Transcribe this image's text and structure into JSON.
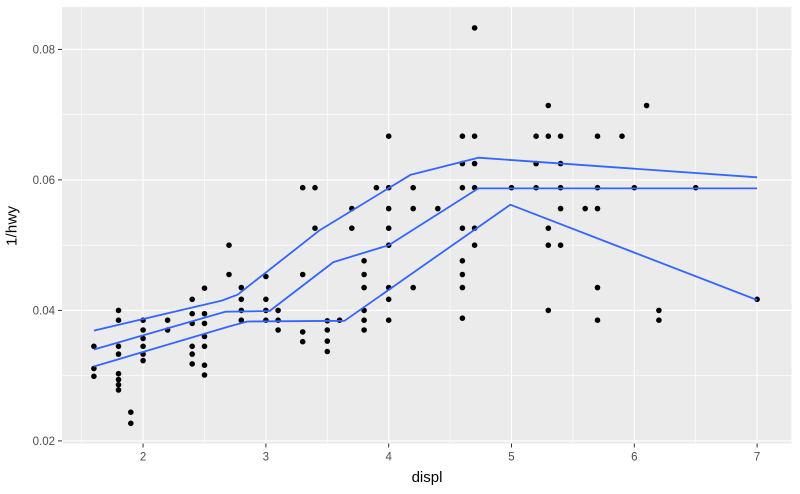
{
  "chart_data": {
    "type": "scatter",
    "title": "",
    "xlabel": "displ",
    "ylabel": "1/hwy",
    "x_ticks": [
      2,
      3,
      4,
      5,
      6,
      7
    ],
    "x_tick_labels": [
      "2",
      "3",
      "4",
      "5",
      "6",
      "7"
    ],
    "y_ticks": [
      0.02,
      0.04,
      0.06,
      0.08
    ],
    "y_tick_labels": [
      "0.02",
      "0.04",
      "0.06",
      "0.08"
    ],
    "x_minor_ticks": [
      1.5,
      2.5,
      3.5,
      4.5,
      5.5,
      6.5
    ],
    "y_minor_ticks": [
      0.03,
      0.05,
      0.07
    ],
    "xlim": [
      1.34,
      7.28
    ],
    "ylim": [
      0.0196,
      0.0865
    ],
    "grid": "on",
    "legend": "none",
    "panel_bg_color": "#EBEBEB",
    "grid_color": "#FFFFFF",
    "point_color": "#000000",
    "line_color": "#3366FF",
    "tick_label_color": "#4D4D4D",
    "tick_mark_color": "#333333",
    "axis_title_color": "#000000",
    "points": [
      [
        1.6,
        0.0345
      ],
      [
        1.6,
        0.0311
      ],
      [
        1.6,
        0.0299
      ],
      [
        1.8,
        0.04
      ],
      [
        1.8,
        0.0385
      ],
      [
        1.8,
        0.0345
      ],
      [
        1.8,
        0.0333
      ],
      [
        1.8,
        0.0303
      ],
      [
        1.8,
        0.0294
      ],
      [
        1.8,
        0.0286
      ],
      [
        1.8,
        0.0278
      ],
      [
        1.9,
        0.0244
      ],
      [
        1.9,
        0.0227
      ],
      [
        2.0,
        0.0385
      ],
      [
        2.0,
        0.037
      ],
      [
        2.0,
        0.0357
      ],
      [
        2.0,
        0.0345
      ],
      [
        2.0,
        0.0333
      ],
      [
        2.0,
        0.0323
      ],
      [
        2.2,
        0.0385
      ],
      [
        2.2,
        0.037
      ],
      [
        2.4,
        0.0417
      ],
      [
        2.4,
        0.0395
      ],
      [
        2.4,
        0.038
      ],
      [
        2.4,
        0.0345
      ],
      [
        2.4,
        0.0333
      ],
      [
        2.4,
        0.0318
      ],
      [
        2.5,
        0.0434
      ],
      [
        2.5,
        0.0395
      ],
      [
        2.5,
        0.038
      ],
      [
        2.5,
        0.036
      ],
      [
        2.5,
        0.0345
      ],
      [
        2.5,
        0.0316
      ],
      [
        2.5,
        0.0301
      ],
      [
        2.7,
        0.05
      ],
      [
        2.7,
        0.0455
      ],
      [
        2.8,
        0.0435
      ],
      [
        2.8,
        0.0417
      ],
      [
        2.8,
        0.04
      ],
      [
        2.8,
        0.0385
      ],
      [
        3.0,
        0.0452
      ],
      [
        3.0,
        0.0417
      ],
      [
        3.0,
        0.04
      ],
      [
        3.0,
        0.0385
      ],
      [
        3.1,
        0.04
      ],
      [
        3.1,
        0.0385
      ],
      [
        3.1,
        0.037
      ],
      [
        3.3,
        0.0588
      ],
      [
        3.3,
        0.0455
      ],
      [
        3.3,
        0.0367
      ],
      [
        3.3,
        0.0352
      ],
      [
        3.4,
        0.0588
      ],
      [
        3.4,
        0.0526
      ],
      [
        3.5,
        0.0384
      ],
      [
        3.5,
        0.037
      ],
      [
        3.5,
        0.0353
      ],
      [
        3.5,
        0.0337
      ],
      [
        3.6,
        0.0385
      ],
      [
        3.7,
        0.0556
      ],
      [
        3.7,
        0.0526
      ],
      [
        3.8,
        0.0476
      ],
      [
        3.8,
        0.0455
      ],
      [
        3.8,
        0.0435
      ],
      [
        3.8,
        0.04
      ],
      [
        3.8,
        0.0385
      ],
      [
        3.8,
        0.037
      ],
      [
        3.9,
        0.0588
      ],
      [
        4.0,
        0.0667
      ],
      [
        4.0,
        0.0588
      ],
      [
        4.0,
        0.0556
      ],
      [
        4.0,
        0.0526
      ],
      [
        4.0,
        0.05
      ],
      [
        4.0,
        0.0435
      ],
      [
        4.0,
        0.0417
      ],
      [
        4.0,
        0.0385
      ],
      [
        4.2,
        0.0588
      ],
      [
        4.2,
        0.0556
      ],
      [
        4.2,
        0.0435
      ],
      [
        4.4,
        0.0556
      ],
      [
        4.6,
        0.0667
      ],
      [
        4.6,
        0.0625
      ],
      [
        4.6,
        0.0588
      ],
      [
        4.6,
        0.0526
      ],
      [
        4.6,
        0.0476
      ],
      [
        4.6,
        0.0455
      ],
      [
        4.6,
        0.0435
      ],
      [
        4.6,
        0.0388
      ],
      [
        4.7,
        0.0833
      ],
      [
        4.7,
        0.0667
      ],
      [
        4.7,
        0.0625
      ],
      [
        4.7,
        0.0588
      ],
      [
        4.7,
        0.0526
      ],
      [
        4.7,
        0.05
      ],
      [
        5.0,
        0.0588
      ],
      [
        5.2,
        0.0667
      ],
      [
        5.2,
        0.0625
      ],
      [
        5.2,
        0.0588
      ],
      [
        5.3,
        0.0714
      ],
      [
        5.3,
        0.0667
      ],
      [
        5.3,
        0.0526
      ],
      [
        5.3,
        0.05
      ],
      [
        5.3,
        0.04
      ],
      [
        5.4,
        0.0667
      ],
      [
        5.4,
        0.0625
      ],
      [
        5.4,
        0.0588
      ],
      [
        5.4,
        0.0556
      ],
      [
        5.4,
        0.05
      ],
      [
        5.6,
        0.0556
      ],
      [
        5.7,
        0.0667
      ],
      [
        5.7,
        0.0588
      ],
      [
        5.7,
        0.0556
      ],
      [
        5.7,
        0.0435
      ],
      [
        5.7,
        0.0385
      ],
      [
        5.9,
        0.0667
      ],
      [
        6.0,
        0.0588
      ],
      [
        6.1,
        0.0714
      ],
      [
        6.2,
        0.04
      ],
      [
        6.2,
        0.0385
      ],
      [
        6.5,
        0.0588
      ],
      [
        7.0,
        0.0417
      ]
    ],
    "quantile_lines": [
      {
        "name": "upper-quantile",
        "path": [
          [
            1.6,
            0.0369
          ],
          [
            2.64,
            0.0415
          ],
          [
            2.77,
            0.0424
          ],
          [
            3.44,
            0.0523
          ],
          [
            4.18,
            0.0608
          ],
          [
            4.73,
            0.0634
          ],
          [
            7.0,
            0.0604
          ]
        ]
      },
      {
        "name": "median-quantile",
        "path": [
          [
            1.6,
            0.034
          ],
          [
            2.67,
            0.0398
          ],
          [
            3.03,
            0.0399
          ],
          [
            3.55,
            0.0474
          ],
          [
            4.0,
            0.05
          ],
          [
            4.73,
            0.0587
          ],
          [
            7.0,
            0.0587
          ]
        ]
      },
      {
        "name": "lower-quantile",
        "path": [
          [
            1.6,
            0.0314
          ],
          [
            2.71,
            0.0376
          ],
          [
            2.85,
            0.0383
          ],
          [
            3.64,
            0.0384
          ],
          [
            4.99,
            0.0562
          ],
          [
            7.0,
            0.0416
          ]
        ]
      }
    ]
  }
}
